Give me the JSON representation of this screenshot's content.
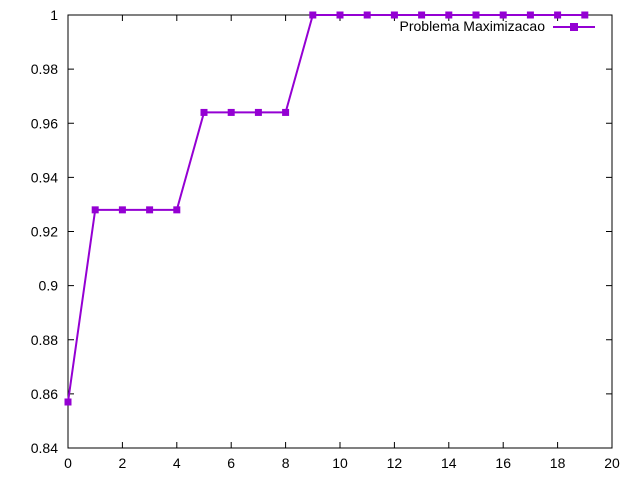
{
  "chart_data": {
    "type": "line",
    "title": "",
    "xlabel": "",
    "ylabel": "",
    "xlim": [
      0,
      20
    ],
    "ylim": [
      0.84,
      1.0
    ],
    "x_ticks": [
      0,
      2,
      4,
      6,
      8,
      10,
      12,
      14,
      16,
      18,
      20
    ],
    "y_ticks": [
      0.84,
      0.86,
      0.88,
      0.9,
      0.92,
      0.94,
      0.96,
      0.98,
      1
    ],
    "x_tick_labels": [
      "0",
      "2",
      "4",
      "6",
      "8",
      "10",
      "12",
      "14",
      "16",
      "18",
      "20"
    ],
    "y_tick_labels": [
      "0.84",
      "0.86",
      "0.88",
      "0.9",
      "0.92",
      "0.94",
      "0.96",
      "0.98",
      "1"
    ],
    "grid": false,
    "legend_position": "top-right",
    "series": [
      {
        "name": "Problema Maximizacao",
        "color": "#9400d3",
        "marker": "square",
        "x": [
          0,
          1,
          2,
          3,
          4,
          5,
          6,
          7,
          8,
          9,
          10,
          11,
          12,
          13,
          14,
          15,
          16,
          17,
          18,
          19
        ],
        "y": [
          0.857,
          0.928,
          0.928,
          0.928,
          0.928,
          0.964,
          0.964,
          0.964,
          0.964,
          1.0,
          1.0,
          1.0,
          1.0,
          1.0,
          1.0,
          1.0,
          1.0,
          1.0,
          1.0,
          1.0
        ]
      }
    ]
  }
}
